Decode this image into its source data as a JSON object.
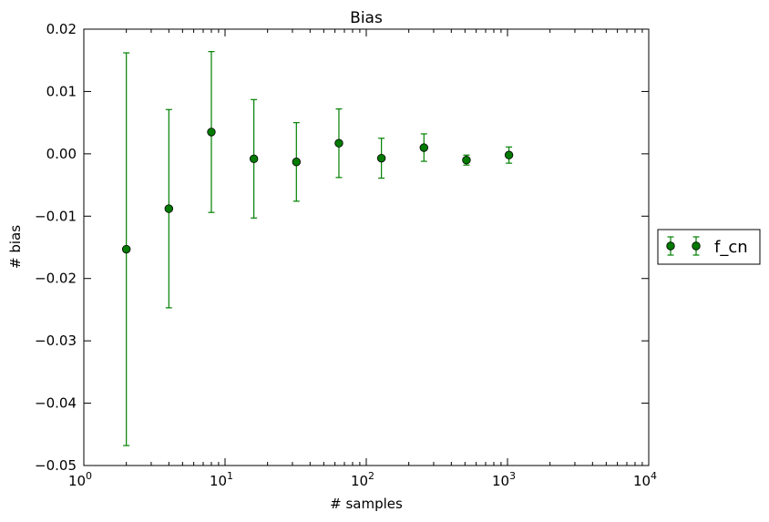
{
  "chart_data": {
    "type": "scatter",
    "title": "Bias",
    "xlabel": "# samples",
    "ylabel": "# bias",
    "x_scale": "log",
    "xlim": [
      1,
      10000
    ],
    "ylim": [
      -0.05,
      0.02
    ],
    "x_ticks": [
      {
        "base": "10",
        "exp": "0"
      },
      {
        "base": "10",
        "exp": "1"
      },
      {
        "base": "10",
        "exp": "2"
      },
      {
        "base": "10",
        "exp": "3"
      },
      {
        "base": "10",
        "exp": "4"
      }
    ],
    "y_ticks": [
      "0.02",
      "0.01",
      "0.00",
      "−0.01",
      "−0.02",
      "−0.03",
      "−0.04",
      "−0.05"
    ],
    "grid": false,
    "legend": {
      "position": "outside-right",
      "entries": [
        "f_cn"
      ]
    },
    "series": [
      {
        "name": "f_cn",
        "color": "#008000",
        "marker_color": "#007a00",
        "x": [
          2,
          4,
          8,
          16,
          32,
          64,
          128,
          256,
          512,
          1024
        ],
        "y": [
          -0.0153,
          -0.0088,
          0.0035,
          -0.0008,
          -0.0013,
          0.0017,
          -0.0007,
          0.001,
          -0.001,
          -0.0002
        ],
        "err": [
          0.0315,
          0.0159,
          0.0129,
          0.0095,
          0.0063,
          0.0055,
          0.0032,
          0.0022,
          0.0008,
          0.0013
        ]
      }
    ]
  }
}
